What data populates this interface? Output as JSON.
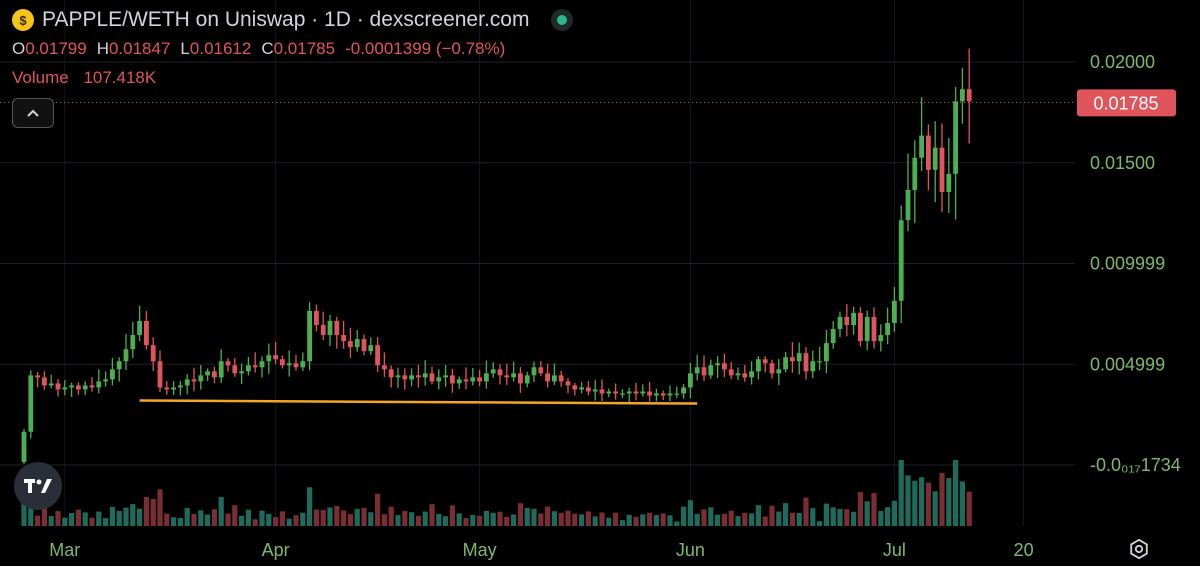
{
  "header": {
    "title": "PAPPLE/WETH on Uniswap · 1D · dexscreener.com",
    "coin_icon": "coin-icon",
    "live_icon": "live-dot-icon"
  },
  "ohlc": {
    "open_label": "O",
    "open": "0.01799",
    "high_label": "H",
    "high": "0.01847",
    "low_label": "L",
    "low": "0.01612",
    "close_label": "C",
    "close": "0.01785",
    "change": "-0.0001399 (−0.78%)"
  },
  "volume": {
    "label": "Volume",
    "value": "107.418K"
  },
  "colors": {
    "up": "#4caf50",
    "down": "#e0555c",
    "up_volume": "#1e6b5c",
    "down_volume": "#7a2d33",
    "trendline": "#f5a623",
    "price_label_bg": "#e0555c"
  },
  "chart_data": {
    "type": "candlestick",
    "ylim": [
      -0.002,
      0.0205
    ],
    "y_ticks": [
      {
        "value": 0.02,
        "label": "0.02000"
      },
      {
        "value": 0.015,
        "label": "0.01500"
      },
      {
        "value": 0.01,
        "label": "0.009999"
      },
      {
        "value": 0.005,
        "label": "0.004999"
      },
      {
        "value": 0.0,
        "label": "-0.0₀₁₇1734"
      }
    ],
    "x_ticks": [
      {
        "index": 6,
        "label": "Mar"
      },
      {
        "index": 37,
        "label": "Apr"
      },
      {
        "index": 67,
        "label": "May"
      },
      {
        "index": 98,
        "label": "Jun"
      },
      {
        "index": 128,
        "label": "Jul"
      },
      {
        "index": 147,
        "label": "20"
      }
    ],
    "current_price": {
      "value": 0.01785,
      "label": "0.01785"
    },
    "trendline": {
      "from_index": 17,
      "to_index": 99,
      "value": 0.00305
    },
    "closes": [
      0.0015,
      0.0043,
      0.0042,
      0.0038,
      0.0039,
      0.0036,
      0.0037,
      0.0038,
      0.0036,
      0.0038,
      0.0037,
      0.004,
      0.0041,
      0.0046,
      0.005,
      0.0056,
      0.0063,
      0.007,
      0.0058,
      0.005,
      0.0037,
      0.0036,
      0.0037,
      0.0038,
      0.0041,
      0.004,
      0.0043,
      0.0045,
      0.0042,
      0.005,
      0.0048,
      0.0044,
      0.0045,
      0.0048,
      0.0047,
      0.005,
      0.0053,
      0.0051,
      0.0048,
      0.0049,
      0.0047,
      0.005,
      0.0075,
      0.0068,
      0.0063,
      0.007,
      0.0063,
      0.006,
      0.0057,
      0.0061,
      0.0055,
      0.0058,
      0.0048,
      0.0046,
      0.0042,
      0.0043,
      0.0041,
      0.0043,
      0.0042,
      0.0044,
      0.004,
      0.0042,
      0.0043,
      0.0039,
      0.0041,
      0.004,
      0.0042,
      0.004,
      0.0044,
      0.0046,
      0.0043,
      0.0042,
      0.0044,
      0.0039,
      0.0043,
      0.0047,
      0.0044,
      0.004,
      0.0043,
      0.004,
      0.0038,
      0.0036,
      0.0037,
      0.0035,
      0.0036,
      0.0034,
      0.0035,
      0.0034,
      0.0034,
      0.0035,
      0.0034,
      0.0035,
      0.0033,
      0.0034,
      0.0033,
      0.0034,
      0.0034,
      0.0037,
      0.0044,
      0.0047,
      0.0043,
      0.0048,
      0.0049,
      0.0046,
      0.0043,
      0.0044,
      0.0042,
      0.0045,
      0.0051,
      0.0049,
      0.0044,
      0.0046,
      0.0052,
      0.005,
      0.0054,
      0.0045,
      0.005,
      0.005,
      0.0059,
      0.0066,
      0.0072,
      0.0068,
      0.0074,
      0.006,
      0.0072,
      0.006,
      0.0063,
      0.0069,
      0.008,
      0.012,
      0.0135,
      0.0151,
      0.0162,
      0.0145,
      0.0156,
      0.0134,
      0.0143,
      0.0179,
      0.0185,
      0.0179
    ]
  }
}
